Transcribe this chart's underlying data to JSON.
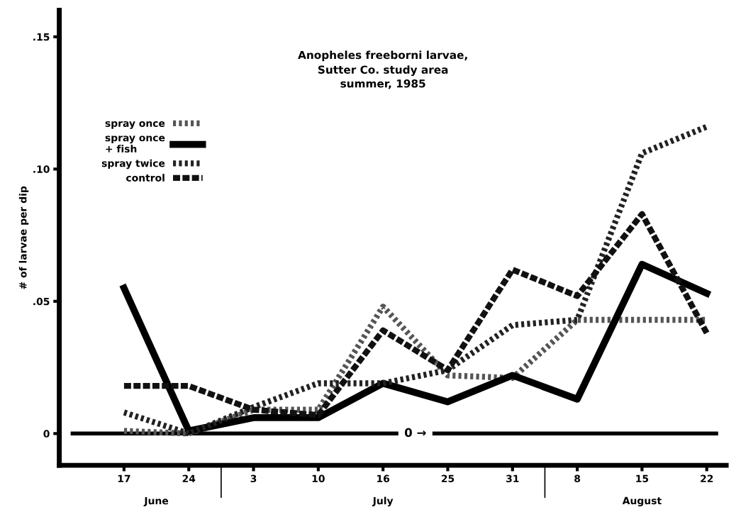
{
  "chart_data": {
    "type": "line",
    "title": "Anopheles freeborni larvae,",
    "subtitle": "Sutter Co. study area\nsummer, 1985",
    "ylabel": "# of larvae per dip",
    "categories": [
      "17",
      "24",
      "3",
      "10",
      "16",
      "25",
      "31",
      "8",
      "15",
      "22"
    ],
    "series": [
      {
        "name": "spray once",
        "color": "#555555",
        "line_style": "dotted",
        "values": [
          0.001,
          0,
          0.009,
          0.009,
          0.048,
          0.022,
          0.021,
          0.043,
          0.043,
          0.043
        ]
      },
      {
        "name": "spray once\n+ fish",
        "color": "#000000",
        "line_style": "solid",
        "values": [
          0.055,
          0.001,
          0.006,
          0.006,
          0.019,
          0.012,
          0.022,
          0.013,
          0.064,
          0.053
        ]
      },
      {
        "name": "spray twice",
        "color": "#222222",
        "line_style": "dotted",
        "values": [
          0.008,
          0,
          0.01,
          0.019,
          0.019,
          0.024,
          0.041,
          0.043,
          0.106,
          0.116
        ]
      },
      {
        "name": "control",
        "color": "#111111",
        "line_style": "dashed",
        "values": [
          0.018,
          0.018,
          0.009,
          0.007,
          0.039,
          0.024,
          0.062,
          0.052,
          0.083,
          0.038
        ]
      }
    ],
    "ylim": [
      -0.012,
      0.16
    ],
    "yticks": [
      0,
      {
        "value": 0.05,
        "label": ".05"
      },
      {
        "value": 0.1,
        "label": ".10"
      },
      {
        "value": 0.15,
        "label": ".15"
      }
    ],
    "ref_lines": [
      {
        "axis": "y",
        "value": 0,
        "label": "0 →",
        "color": "#000000"
      }
    ],
    "annotations": [
      "June",
      "July",
      "August"
    ],
    "legend": "top left",
    "grid": false
  }
}
